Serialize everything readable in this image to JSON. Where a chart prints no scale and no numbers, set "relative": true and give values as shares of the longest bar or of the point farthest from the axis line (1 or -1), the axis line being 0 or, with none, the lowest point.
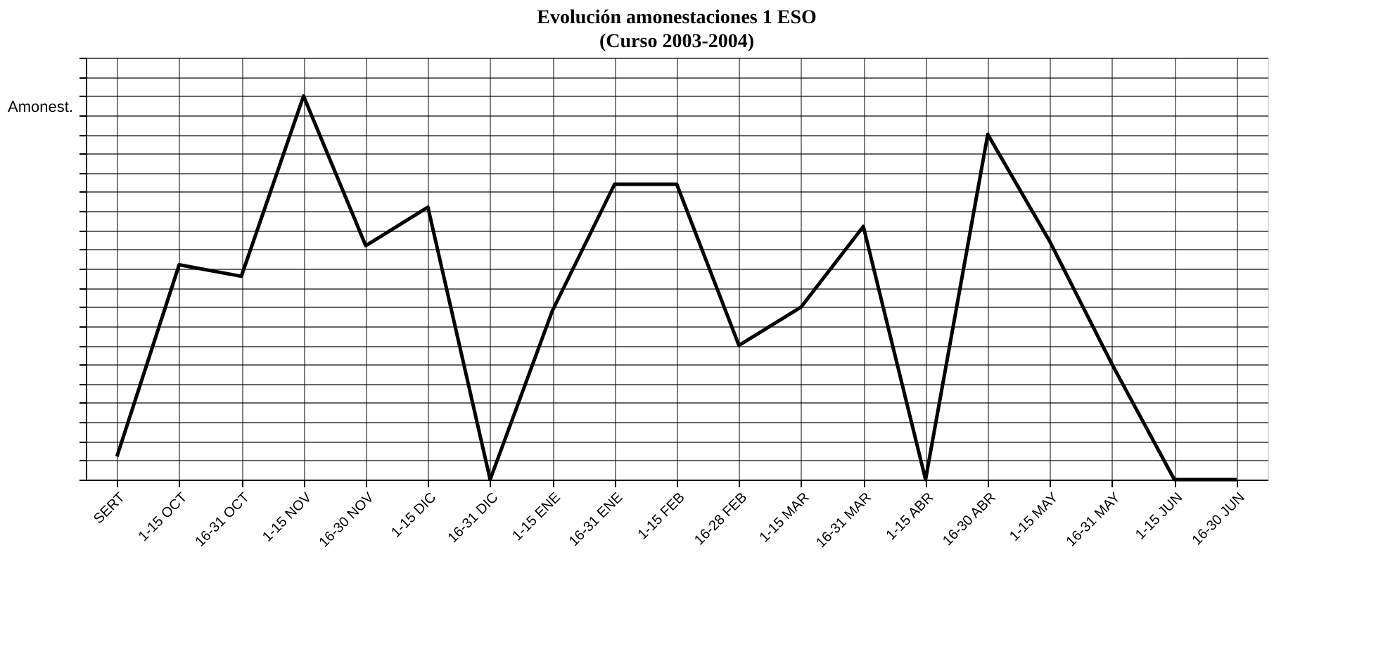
{
  "chart_data": {
    "type": "line",
    "title": "Evolución amonestaciones 1 ESO",
    "subtitle": "(Curso 2003-2004)",
    "ylabel": "Amonest.",
    "relative": true,
    "grid": true,
    "categories": [
      "SERT",
      "1-15 OCT",
      "16-31 OCT",
      "1-15 NOV",
      "16-30 NOV",
      "1-15 DIC",
      "16-31 DIC",
      "1-15 ENE",
      "16-31 ENE",
      "1-15 FEB",
      "16-28 FEB",
      "1-15 MAR",
      "16-31 MAR",
      "1-15 ABR",
      "16-30 ABR",
      "1-15 MAY",
      "16-31 MAY",
      "1-15 JUN",
      "16-30 JUN"
    ],
    "series": [
      {
        "color": "#000000",
        "values": [
          0.06,
          0.56,
          0.53,
          1,
          0.61,
          0.71,
          0,
          0.44,
          0.77,
          0.77,
          0.35,
          0.45,
          0.66,
          0,
          0.9,
          0.62,
          0.3,
          0,
          0
        ]
      }
    ]
  }
}
